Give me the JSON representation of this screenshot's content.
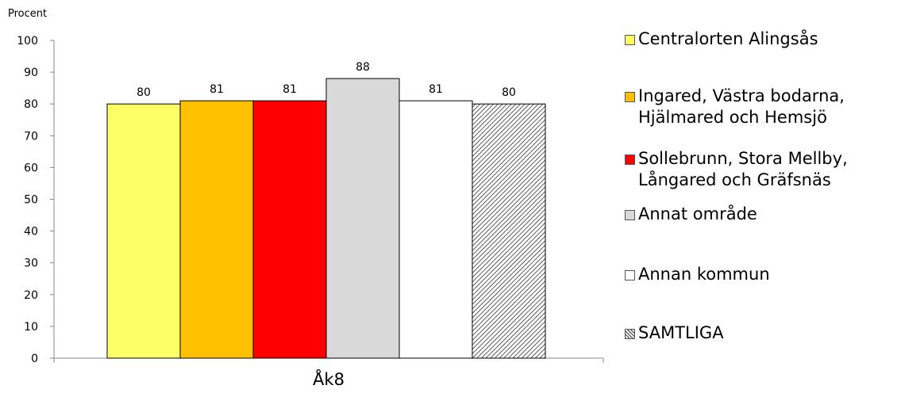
{
  "chart_data": {
    "type": "bar",
    "ylabel": "Procent",
    "xlabel": "",
    "ylim": [
      0,
      100
    ],
    "yticks": [
      0,
      10,
      20,
      30,
      40,
      50,
      60,
      70,
      80,
      90,
      100
    ],
    "categories": [
      "Åk8"
    ],
    "grid": false,
    "legend_position": "right",
    "series": [
      {
        "name": "Centralorten Alingsås",
        "values": [
          80
        ],
        "value_labels": [
          "80"
        ],
        "color": "#ffff66",
        "pattern": "solid"
      },
      {
        "name": "Ingared, Västra bodarna,\nHjälmared och Hemsjö",
        "values": [
          81
        ],
        "value_labels": [
          "81"
        ],
        "color": "#ffc000",
        "pattern": "solid"
      },
      {
        "name": "Sollebrunn, Stora Mellby,\nLångared och Gräfsnäs",
        "values": [
          81
        ],
        "value_labels": [
          "81"
        ],
        "color": "#ff0000",
        "pattern": "solid"
      },
      {
        "name": "Annat område",
        "values": [
          88
        ],
        "value_labels": [
          "88"
        ],
        "color": "#d9d9d9",
        "pattern": "solid"
      },
      {
        "name": "Annan kommun",
        "values": [
          81
        ],
        "value_labels": [
          "81"
        ],
        "color": "#ffffff",
        "pattern": "solid"
      },
      {
        "name": "SAMTLIGA",
        "values": [
          80
        ],
        "value_labels": [
          "80"
        ],
        "color": "#ffffff",
        "pattern": "hatch"
      }
    ]
  }
}
